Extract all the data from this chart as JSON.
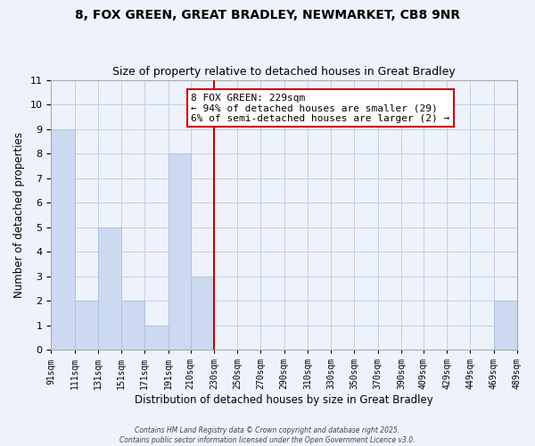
{
  "title": "8, FOX GREEN, GREAT BRADLEY, NEWMARKET, CB8 9NR",
  "subtitle": "Size of property relative to detached houses in Great Bradley",
  "xlabel": "Distribution of detached houses by size in Great Bradley",
  "ylabel": "Number of detached properties",
  "bins": [
    91,
    111,
    131,
    151,
    171,
    191,
    210,
    230,
    250,
    270,
    290,
    310,
    330,
    350,
    370,
    390,
    409,
    429,
    449,
    469,
    489
  ],
  "bar_values": [
    9,
    2,
    5,
    2,
    1,
    8,
    3,
    0,
    0,
    0,
    0,
    0,
    0,
    0,
    0,
    0,
    0,
    0,
    0,
    2
  ],
  "bar_color": "#ccd9f0",
  "bar_edge_color": "#abc4de",
  "grid_color": "#c0cfe8",
  "background_color": "#eef2fb",
  "vline_x": 230,
  "vline_color": "#cc0000",
  "ylim": [
    0,
    11
  ],
  "yticks": [
    0,
    1,
    2,
    3,
    4,
    5,
    6,
    7,
    8,
    9,
    10,
    11
  ],
  "annotation_text": "8 FOX GREEN: 229sqm\n← 94% of detached houses are smaller (29)\n6% of semi-detached houses are larger (2) →",
  "annotation_box_color": "#ffffff",
  "annotation_border_color": "#cc0000",
  "footnote": "Contains HM Land Registry data © Crown copyright and database right 2025.\nContains public sector information licensed under the Open Government Licence v3.0.",
  "tick_labels": [
    "91sqm",
    "111sqm",
    "131sqm",
    "151sqm",
    "171sqm",
    "191sqm",
    "210sqm",
    "230sqm",
    "250sqm",
    "270sqm",
    "290sqm",
    "310sqm",
    "330sqm",
    "350sqm",
    "370sqm",
    "390sqm",
    "409sqm",
    "429sqm",
    "449sqm",
    "469sqm",
    "489sqm"
  ]
}
